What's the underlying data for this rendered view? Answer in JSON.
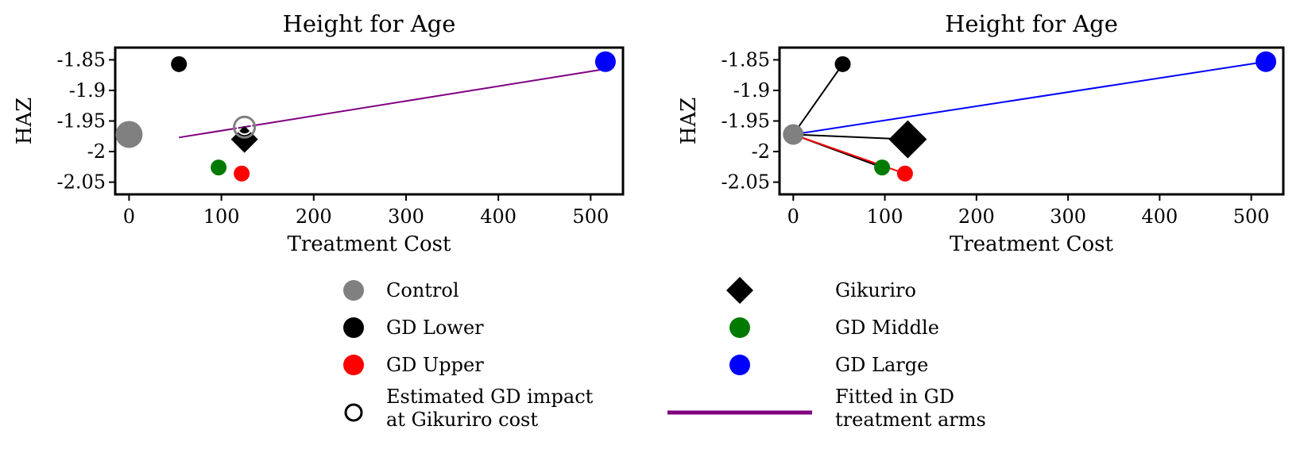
{
  "legend": {
    "items": [
      {
        "id": "control",
        "label": "Control",
        "marker": "circle",
        "color": "#808080"
      },
      {
        "id": "gikuriro",
        "label": "Gikuriro",
        "marker": "diamond",
        "color": "#000000"
      },
      {
        "id": "gd_lower",
        "label": "GD Lower",
        "marker": "circle",
        "color": "#000000"
      },
      {
        "id": "gd_middle",
        "label": "GD Middle",
        "marker": "circle",
        "color": "#007a00"
      },
      {
        "id": "gd_upper",
        "label": "GD Upper",
        "marker": "circle",
        "color": "#ff0000"
      },
      {
        "id": "gd_large",
        "label": "GD Large",
        "marker": "circle",
        "color": "#0000ff"
      },
      {
        "id": "estimated",
        "label_lines": [
          "Estimated GD impact",
          "at Gikuriro cost"
        ],
        "marker": "hollow-circle",
        "color": "#000000"
      },
      {
        "id": "fitted",
        "label_lines": [
          "Fitted in GD",
          "treatment arms"
        ],
        "marker": "line",
        "color": "#800080"
      }
    ]
  },
  "chart_data": [
    {
      "type": "scatter",
      "title": "Height for Age",
      "xlabel": "Treatment Cost",
      "ylabel": "HAZ",
      "xlim": [
        -15,
        535
      ],
      "ylim": [
        -2.07,
        -1.83
      ],
      "xticks": [
        0,
        100,
        200,
        300,
        400,
        500
      ],
      "yticks": [
        -1.85,
        -1.9,
        -1.95,
        -2,
        -2.05
      ],
      "ytick_labels": [
        "-1.85",
        "-1.9",
        "-1.95",
        "-2",
        "-2.05"
      ],
      "grid": false,
      "points": [
        {
          "name": "Control",
          "x": 0,
          "y": -1.972,
          "marker": "circle",
          "size": "large",
          "color": "#808080"
        },
        {
          "name": "GD Lower",
          "x": 54,
          "y": -1.857,
          "marker": "circle",
          "size": "small",
          "color": "#000000"
        },
        {
          "name": "GD Middle",
          "x": 97,
          "y": -2.026,
          "marker": "circle",
          "size": "small",
          "color": "#007a00"
        },
        {
          "name": "GD Upper",
          "x": 122,
          "y": -2.036,
          "marker": "circle",
          "size": "small",
          "color": "#ff0000"
        },
        {
          "name": "GD Large",
          "x": 516,
          "y": -1.853,
          "marker": "circle",
          "size": "medium",
          "color": "#0000ff"
        },
        {
          "name": "Gikuriro",
          "x": 125,
          "y": -1.98,
          "marker": "diamond",
          "size": "large",
          "color": "#000000"
        },
        {
          "name": "Estimated GD impact at Gikuriro cost",
          "x": 125,
          "y": -1.96,
          "marker": "hollow-circle",
          "size": "medium",
          "color": "#000000"
        }
      ],
      "lines": [
        {
          "name": "Fitted in GD treatment arms",
          "x": [
            54,
            516
          ],
          "y": [
            -1.977,
            -1.865
          ],
          "color": "#800080"
        }
      ]
    },
    {
      "type": "scatter",
      "title": "Height for Age",
      "xlabel": "Treatment Cost",
      "ylabel": "HAZ",
      "xlim": [
        -15,
        535
      ],
      "ylim": [
        -2.07,
        -1.83
      ],
      "xticks": [
        0,
        100,
        200,
        300,
        400,
        500
      ],
      "yticks": [
        -1.85,
        -1.9,
        -1.95,
        -2,
        -2.05
      ],
      "ytick_labels": [
        "-1.85",
        "-1.9",
        "-1.95",
        "-2",
        "-2.05"
      ],
      "grid": false,
      "points": [
        {
          "name": "Control",
          "x": 0,
          "y": -1.972,
          "marker": "circle",
          "size": "medium",
          "color": "#808080"
        },
        {
          "name": "GD Lower",
          "x": 54,
          "y": -1.857,
          "marker": "circle",
          "size": "small",
          "color": "#000000"
        },
        {
          "name": "GD Middle",
          "x": 97,
          "y": -2.026,
          "marker": "circle",
          "size": "small",
          "color": "#007a00"
        },
        {
          "name": "GD Upper",
          "x": 122,
          "y": -2.036,
          "marker": "circle",
          "size": "small",
          "color": "#ff0000"
        },
        {
          "name": "GD Large",
          "x": 516,
          "y": -1.853,
          "marker": "circle",
          "size": "medium",
          "color": "#0000ff"
        },
        {
          "name": "Gikuriro",
          "x": 125,
          "y": -1.98,
          "marker": "diamond",
          "size": "xlarge",
          "color": "#000000"
        }
      ],
      "lines": [
        {
          "name": "Control to GD Lower",
          "x": [
            0,
            54
          ],
          "y": [
            -1.972,
            -1.857
          ],
          "color": "#000000"
        },
        {
          "name": "Control to GD Large",
          "x": [
            0,
            516
          ],
          "y": [
            -1.972,
            -1.853
          ],
          "color": "#0000ff"
        },
        {
          "name": "Control to Gikuriro",
          "x": [
            0,
            125
          ],
          "y": [
            -1.972,
            -1.98
          ],
          "color": "#000000"
        },
        {
          "name": "Control to GD Middle",
          "x": [
            0,
            97
          ],
          "y": [
            -1.972,
            -2.026
          ],
          "color": "#000000"
        },
        {
          "name": "Control to GD Upper",
          "x": [
            0,
            122
          ],
          "y": [
            -1.972,
            -2.036
          ],
          "color": "#ff0000"
        }
      ]
    }
  ]
}
